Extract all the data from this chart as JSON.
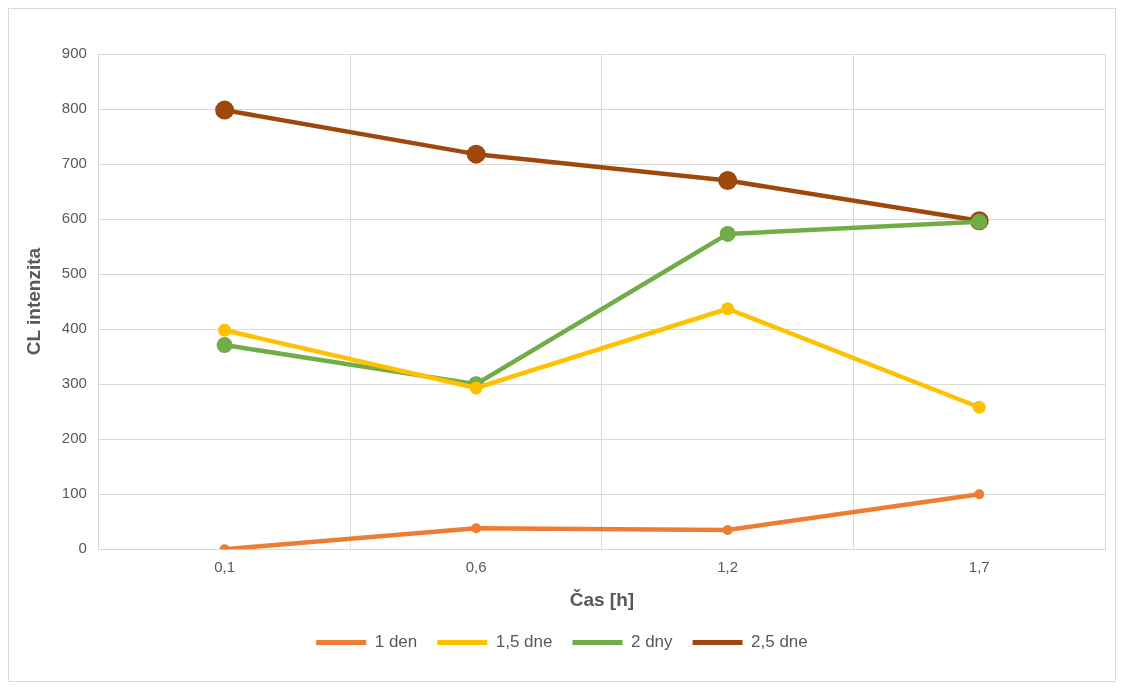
{
  "chart_data": {
    "type": "line",
    "xlabel": "Čas [h]",
    "ylabel": "CL intenzita",
    "categories": [
      "0,1",
      "0,6",
      "1,2",
      "1,7"
    ],
    "series": [
      {
        "name": "1 den",
        "color": "#ed7d31",
        "values": [
          0,
          38,
          35,
          100
        ]
      },
      {
        "name": "1,5 dne",
        "color": "#ffc000",
        "values": [
          398,
          293,
          437,
          258
        ]
      },
      {
        "name": "2 dny",
        "color": "#70ad47",
        "values": [
          371,
          300,
          573,
          595
        ]
      },
      {
        "name": "2,5 dne",
        "color": "#9e480e",
        "values": [
          798,
          718,
          670,
          597
        ]
      }
    ],
    "ylim": [
      0,
      900
    ],
    "yticks": [
      0,
      100,
      200,
      300,
      400,
      500,
      600,
      700,
      800,
      900
    ],
    "grid": true,
    "legend": "bottom",
    "marker": "circle",
    "line_style": "solid"
  }
}
